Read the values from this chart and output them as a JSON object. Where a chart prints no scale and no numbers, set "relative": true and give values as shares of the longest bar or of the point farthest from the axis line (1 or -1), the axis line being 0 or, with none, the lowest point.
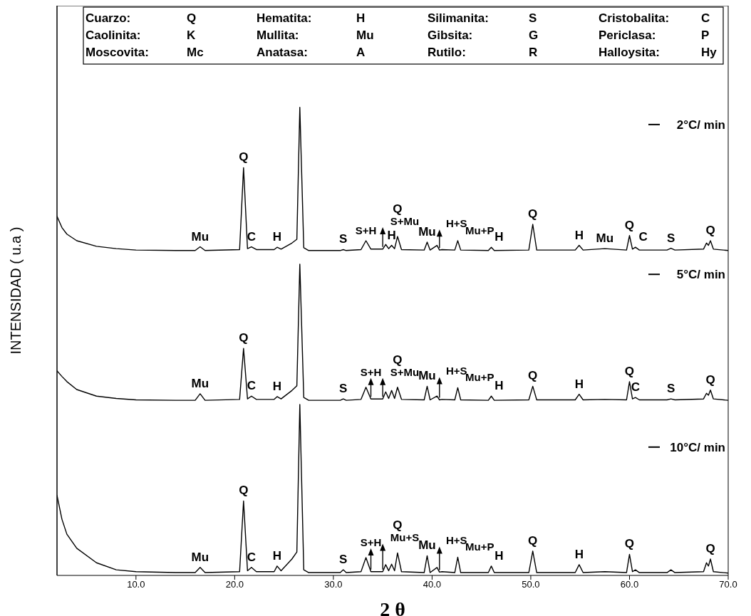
{
  "chart_data": {
    "type": "line",
    "xlabel": "2 θ",
    "ylabel": "INTENSIDAD ( u.a )",
    "relative": true,
    "marker": "none",
    "line_style": "solid",
    "legend": "right",
    "grid": false,
    "xlim": [
      2,
      70
    ],
    "xticks": [
      {
        "value": 10,
        "label": "10.0"
      },
      {
        "value": 20,
        "label": "20.0"
      },
      {
        "value": 30,
        "label": "30.0"
      },
      {
        "value": 40,
        "label": "40.0"
      },
      {
        "value": 50,
        "label": "50.0"
      },
      {
        "value": 60,
        "label": "60.0"
      },
      {
        "value": 70,
        "label": "70.0"
      }
    ],
    "x": [
      2,
      2.5,
      3,
      4,
      6,
      8,
      10,
      14,
      16.0,
      16.5,
      17.0,
      20.5,
      20.9,
      21.3,
      21.7,
      22.2,
      24.0,
      24.3,
      24.7,
      25.8,
      26.3,
      26.6,
      27.0,
      27.5,
      30.7,
      31.0,
      31.3,
      32.8,
      33.3,
      33.8,
      35.0,
      35.3,
      35.6,
      35.9,
      36.2,
      36.5,
      36.9,
      39.2,
      39.5,
      39.8,
      40.5,
      40.75,
      41.0,
      42.3,
      42.6,
      42.9,
      45.7,
      46.0,
      46.3,
      49.8,
      50.2,
      50.6,
      54.5,
      54.9,
      55.3,
      57.5,
      59.7,
      60.0,
      60.3,
      60.6,
      61.0,
      63.8,
      64.2,
      64.6,
      67.5,
      67.8,
      68.0,
      68.2,
      68.5,
      70
    ],
    "series": [
      {
        "name": "2°C/ min",
        "color": "#000000",
        "values": [
          0.767,
          0.743,
          0.729,
          0.715,
          0.703,
          0.698,
          0.695,
          0.694,
          0.694,
          0.702,
          0.694,
          0.696,
          0.871,
          0.698,
          0.702,
          0.696,
          0.696,
          0.701,
          0.697,
          0.71,
          0.718,
          1.0,
          0.7,
          0.694,
          0.694,
          0.696,
          0.694,
          0.696,
          0.715,
          0.697,
          0.697,
          0.707,
          0.698,
          0.705,
          0.698,
          0.724,
          0.696,
          0.695,
          0.712,
          0.695,
          0.705,
          0.695,
          0.696,
          0.695,
          0.715,
          0.695,
          0.694,
          0.701,
          0.694,
          0.695,
          0.75,
          0.695,
          0.695,
          0.705,
          0.695,
          0.698,
          0.695,
          0.726,
          0.697,
          0.701,
          0.695,
          0.695,
          0.699,
          0.695,
          0.697,
          0.71,
          0.705,
          0.715,
          0.697,
          0.694
        ]
      },
      {
        "name": "5°C/ min",
        "color": "#000000",
        "values": [
          0.437,
          0.425,
          0.414,
          0.397,
          0.383,
          0.378,
          0.375,
          0.374,
          0.374,
          0.388,
          0.374,
          0.376,
          0.485,
          0.377,
          0.383,
          0.376,
          0.376,
          0.382,
          0.377,
          0.395,
          0.405,
          0.665,
          0.38,
          0.374,
          0.374,
          0.377,
          0.374,
          0.376,
          0.402,
          0.377,
          0.377,
          0.392,
          0.378,
          0.395,
          0.378,
          0.402,
          0.376,
          0.375,
          0.404,
          0.375,
          0.383,
          0.375,
          0.376,
          0.375,
          0.401,
          0.375,
          0.374,
          0.383,
          0.374,
          0.375,
          0.404,
          0.375,
          0.375,
          0.387,
          0.375,
          0.376,
          0.375,
          0.414,
          0.377,
          0.38,
          0.375,
          0.375,
          0.377,
          0.375,
          0.377,
          0.389,
          0.385,
          0.396,
          0.377,
          0.374
        ]
      },
      {
        "name": "10°C/ min",
        "color": "#000000",
        "values": [
          0.171,
          0.12,
          0.088,
          0.058,
          0.027,
          0.012,
          0.008,
          0.006,
          0.006,
          0.017,
          0.006,
          0.008,
          0.159,
          0.01,
          0.017,
          0.008,
          0.008,
          0.02,
          0.01,
          0.035,
          0.05,
          0.365,
          0.012,
          0.006,
          0.006,
          0.012,
          0.006,
          0.008,
          0.038,
          0.008,
          0.008,
          0.023,
          0.01,
          0.024,
          0.01,
          0.048,
          0.008,
          0.006,
          0.042,
          0.006,
          0.017,
          0.007,
          0.008,
          0.006,
          0.039,
          0.006,
          0.006,
          0.02,
          0.006,
          0.006,
          0.052,
          0.006,
          0.006,
          0.023,
          0.006,
          0.008,
          0.006,
          0.045,
          0.008,
          0.012,
          0.006,
          0.006,
          0.012,
          0.006,
          0.008,
          0.027,
          0.02,
          0.035,
          0.008,
          0.005
        ]
      }
    ],
    "annotations": [
      "Cuarzo: Q",
      "Hematita: H",
      "Silimanita: S",
      "Cristobalita: C",
      "Caolinita: K",
      "Mullita: Mu",
      "Gibsita: G",
      "Periclasa: P",
      "Moscovita: Mc",
      "Anatasa: A",
      "Rutilo: R",
      "Halloysita: Hy",
      {
        "text": "Mu",
        "x": 16.5,
        "y": 0.702
      },
      {
        "text": "Q",
        "x": 20.9,
        "y": 0.871
      },
      {
        "text": "C",
        "x": 21.7,
        "y": 0.702
      },
      {
        "text": "H",
        "x": 24.3,
        "y": 0.701
      },
      {
        "text": "S",
        "x": 31.0,
        "y": 0.696
      },
      {
        "text": "S+H",
        "x": 33.3,
        "y": 0.715
      },
      {
        "text": "S+Mu",
        "x": 35.0,
        "y": 0.697
      },
      {
        "text": "H",
        "x": 35.9,
        "y": 0.705
      },
      {
        "text": "Q",
        "x": 36.5,
        "y": 0.724
      },
      {
        "text": "Mu",
        "x": 39.5,
        "y": 0.712
      },
      {
        "text": "H+S",
        "x": 40.75,
        "y": 0.695
      },
      {
        "text": "Mu+P",
        "x": 42.6,
        "y": 0.715
      },
      {
        "text": "H",
        "x": 46.0,
        "y": 0.701
      },
      {
        "text": "Q",
        "x": 50.2,
        "y": 0.75
      },
      {
        "text": "H",
        "x": 54.9,
        "y": 0.705
      },
      {
        "text": "Mu",
        "x": 57.5,
        "y": 0.698
      },
      {
        "text": "Q",
        "x": 60.0,
        "y": 0.726
      },
      {
        "text": "C",
        "x": 60.6,
        "y": 0.701
      },
      {
        "text": "S",
        "x": 64.2,
        "y": 0.699
      },
      {
        "text": "Q",
        "x": 68.2,
        "y": 0.715
      },
      {
        "text": "Mu",
        "x": 16.5,
        "y": 0.388
      },
      {
        "text": "Q",
        "x": 20.9,
        "y": 0.485
      },
      {
        "text": "C",
        "x": 21.7,
        "y": 0.383
      },
      {
        "text": "H",
        "x": 24.3,
        "y": 0.382
      },
      {
        "text": "S",
        "x": 31.0,
        "y": 0.377
      },
      {
        "text": "S+H",
        "x": 33.8,
        "y": 0.377
      },
      {
        "text": "S+Mu",
        "x": 35.0,
        "y": 0.377
      },
      {
        "text": "Q",
        "x": 36.5,
        "y": 0.402
      },
      {
        "text": "Mu",
        "x": 39.5,
        "y": 0.404
      },
      {
        "text": "H+S",
        "x": 40.75,
        "y": 0.375
      },
      {
        "text": "Mu+P",
        "x": 42.6,
        "y": 0.401
      },
      {
        "text": "H",
        "x": 46.0,
        "y": 0.383
      },
      {
        "text": "Q",
        "x": 50.2,
        "y": 0.404
      },
      {
        "text": "H",
        "x": 54.9,
        "y": 0.387
      },
      {
        "text": "Q",
        "x": 60.0,
        "y": 0.414
      },
      {
        "text": "C",
        "x": 60.6,
        "y": 0.38
      },
      {
        "text": "S",
        "x": 64.2,
        "y": 0.377
      },
      {
        "text": "Q",
        "x": 68.2,
        "y": 0.396
      },
      {
        "text": "Mu",
        "x": 16.5,
        "y": 0.017
      },
      {
        "text": "Q",
        "x": 20.9,
        "y": 0.159
      },
      {
        "text": "C",
        "x": 21.7,
        "y": 0.017
      },
      {
        "text": "H",
        "x": 24.3,
        "y": 0.02
      },
      {
        "text": "S",
        "x": 31.0,
        "y": 0.012
      },
      {
        "text": "S+H",
        "x": 33.8,
        "y": 0.008
      },
      {
        "text": "Mu+S",
        "x": 35.0,
        "y": 0.008
      },
      {
        "text": "Q",
        "x": 36.5,
        "y": 0.048
      },
      {
        "text": "Mu",
        "x": 39.5,
        "y": 0.042
      },
      {
        "text": "H+S",
        "x": 40.75,
        "y": 0.007
      },
      {
        "text": "Mu+P",
        "x": 42.6,
        "y": 0.039
      },
      {
        "text": "H",
        "x": 46.0,
        "y": 0.02
      },
      {
        "text": "Q",
        "x": 50.2,
        "y": 0.052
      },
      {
        "text": "H",
        "x": 54.9,
        "y": 0.023
      },
      {
        "text": "Q",
        "x": 60.0,
        "y": 0.045
      },
      {
        "text": "Q",
        "x": 68.2,
        "y": 0.035
      }
    ]
  }
}
